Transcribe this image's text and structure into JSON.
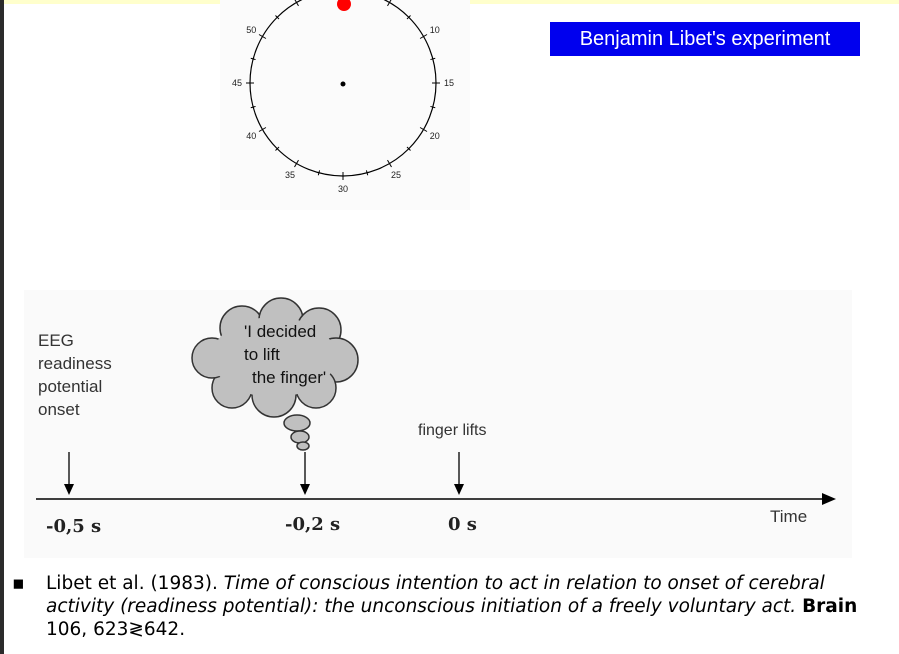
{
  "clock": {
    "tick_labels": [
      {
        "label": "10"
      },
      {
        "label": "15"
      },
      {
        "label": "20"
      },
      {
        "label": "25"
      },
      {
        "label": "30"
      },
      {
        "label": "35"
      },
      {
        "label": "40"
      },
      {
        "label": "45"
      },
      {
        "label": "50"
      }
    ],
    "marker_color": "#ff0000"
  },
  "title": "Benjamin Libet's experiment",
  "timeline": {
    "eeg_label": [
      "EEG",
      "readiness",
      "potential",
      "onset"
    ],
    "thought": [
      "'I decided",
      "to lift",
      "the finger'"
    ],
    "finger_label": "finger lifts",
    "time_label": "Time",
    "ticks": [
      "-0,5 s",
      "-0,2 s",
      "0 s"
    ]
  },
  "citation": {
    "bullet": "▪",
    "authors": "Libet et al. (1983).",
    "title": "Time of conscious intention to act in relation to onset of cerebral activity (readiness potential): the unconscious initiation of a freely voluntary act.",
    "journal": "Brain",
    "volume_pages": "106, 623≷642."
  }
}
